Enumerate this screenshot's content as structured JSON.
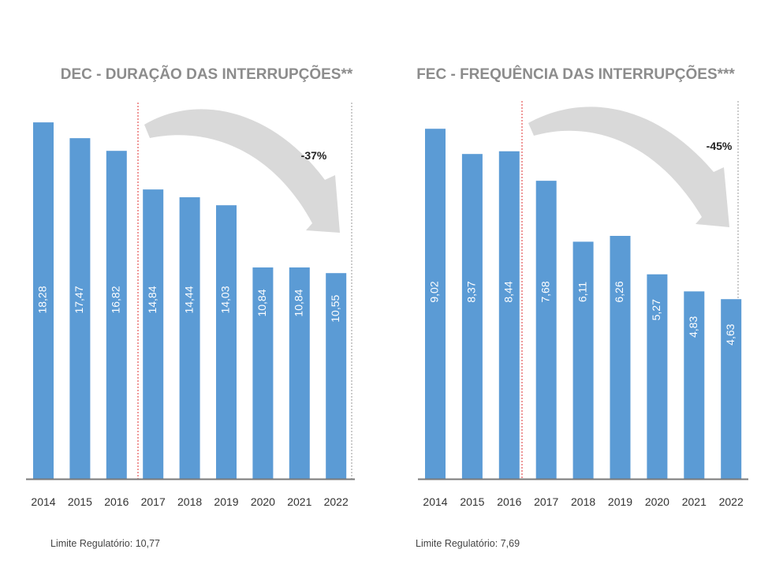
{
  "colors": {
    "bar": "#5b9bd5",
    "axis": "#7a7a7a",
    "title": "#8c8c8c",
    "divider": "#e03030",
    "arrow": "#d9d9d9",
    "label": "#ffffff",
    "text": "#333333"
  },
  "chart_data": [
    {
      "type": "bar",
      "title": "DEC - DURAÇÃO DAS INTERRUPÇÕES**",
      "categories": [
        "2014",
        "2015",
        "2016",
        "2017",
        "2018",
        "2019",
        "2020",
        "2021",
        "2022"
      ],
      "values": [
        18.28,
        17.47,
        16.82,
        14.84,
        14.44,
        14.03,
        10.84,
        10.84,
        10.55
      ],
      "value_labels": [
        "18,28",
        "17,47",
        "16,82",
        "14,84",
        "14,44",
        "14,03",
        "10,84",
        "10,84",
        "10,55"
      ],
      "change_label": "-37%",
      "footnote": "Limite Regulatório: 10,77",
      "grid": false
    },
    {
      "type": "bar",
      "title": "FEC - FREQUÊNCIA DAS INTERRUPÇÕES***",
      "categories": [
        "2014",
        "2015",
        "2016",
        "2017",
        "2018",
        "2019",
        "2020",
        "2021",
        "2022"
      ],
      "values": [
        9.02,
        8.37,
        8.44,
        7.68,
        6.11,
        6.26,
        5.27,
        4.83,
        4.63
      ],
      "value_labels": [
        "9,02",
        "8,37",
        "8,44",
        "7,68",
        "6,11",
        "6,26",
        "5,27",
        "4,83",
        "4,63"
      ],
      "change_label": "-45%",
      "footnote": "Limite Regulatório: 7,69",
      "grid": false
    }
  ]
}
